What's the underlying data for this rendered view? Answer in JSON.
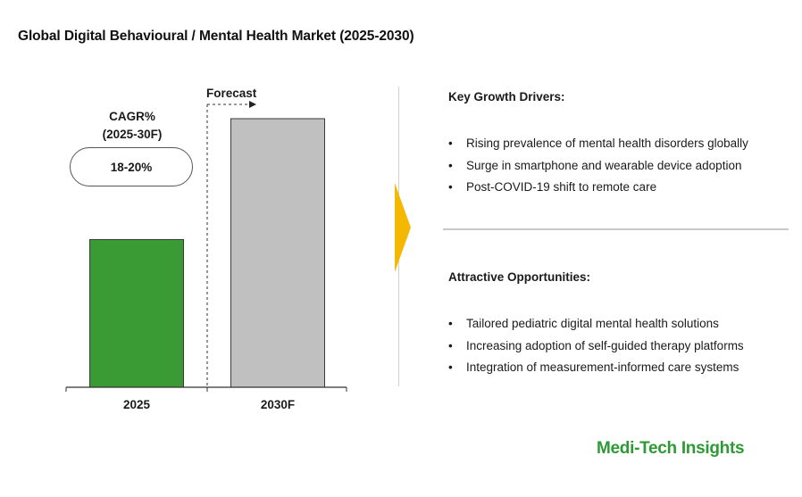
{
  "title": "Global Digital Behavioural / Mental Health Market (2025-2030)",
  "chart_data": {
    "type": "bar",
    "categories": [
      "2025",
      "2030F"
    ],
    "values": [
      0.55,
      1.0
    ],
    "colors": [
      "#3a9a34",
      "#c0c0c0"
    ],
    "ylim": [
      0,
      1.0
    ],
    "grid": false,
    "annotations": {
      "forecast_label": "Forecast",
      "cagr_label_line1": "CAGR%",
      "cagr_label_line2": "(2025-30F)",
      "cagr_value": "18-20%"
    }
  },
  "key_growth_drivers": {
    "heading": "Key Growth Drivers:",
    "items": [
      "Rising prevalence of mental health disorders globally",
      "Surge in smartphone and wearable device adoption",
      "Post-COVID-19 shift to remote care"
    ]
  },
  "attractive_opportunities": {
    "heading": "Attractive Opportunities:",
    "items": [
      "Tailored pediatric digital mental health solutions",
      "Increasing adoption of self-guided therapy platforms",
      "Integration of measurement-informed care systems"
    ]
  },
  "accent_color": "#f5b800",
  "brand": "Medi-Tech Insights",
  "brand_color": "#2e9a35"
}
